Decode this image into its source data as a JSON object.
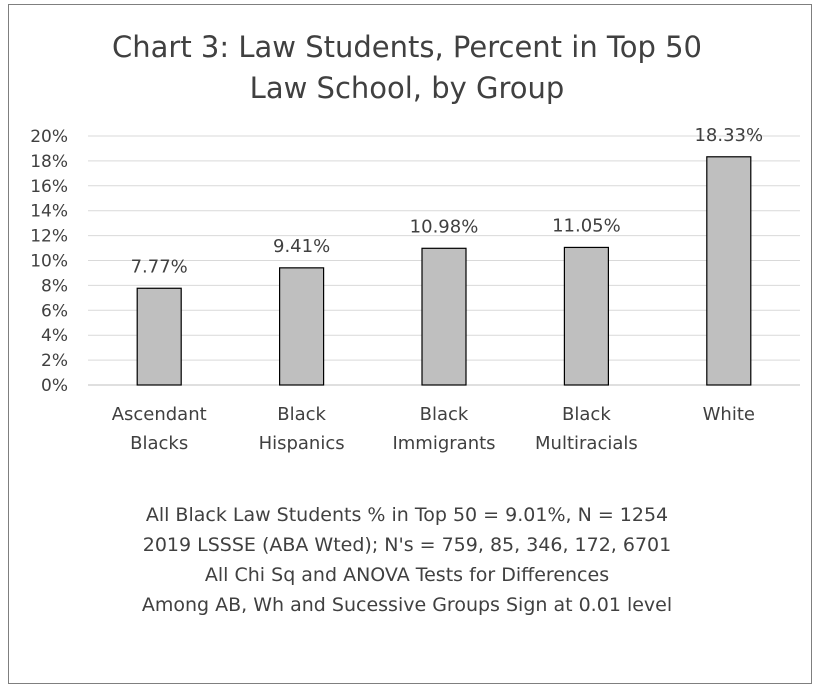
{
  "chart_data": {
    "type": "bar",
    "title_lines": [
      "Chart 3: Law Students, Percent in Top 50",
      "Law School, by Group"
    ],
    "categories": [
      [
        "Ascendant",
        "Blacks"
      ],
      [
        "Black",
        "Hispanics"
      ],
      [
        "Black",
        "Immigrants"
      ],
      [
        "Black",
        "Multiracials"
      ],
      [
        "White"
      ]
    ],
    "values": [
      7.77,
      9.41,
      10.98,
      11.05,
      18.33
    ],
    "data_labels": [
      "7.77%",
      "9.41%",
      "10.98%",
      "11.05%",
      "18.33%"
    ],
    "y_ticks": [
      "0%",
      "2%",
      "4%",
      "6%",
      "8%",
      "10%",
      "12%",
      "14%",
      "16%",
      "18%",
      "20%"
    ],
    "ylim": [
      0,
      20
    ],
    "grid": true,
    "bar_color": "#bfbfbf",
    "bar_edge_color": "#000000",
    "notes": [
      "All Black Law Students % in Top 50 = 9.01%, N = 1254",
      "2019 LSSSE (ABA Wted); N's = 759, 85, 346, 172, 6701",
      "All Chi Sq and ANOVA Tests for Differences",
      "Among AB, Wh and Sucessive Groups Sign at 0.01 level"
    ]
  }
}
